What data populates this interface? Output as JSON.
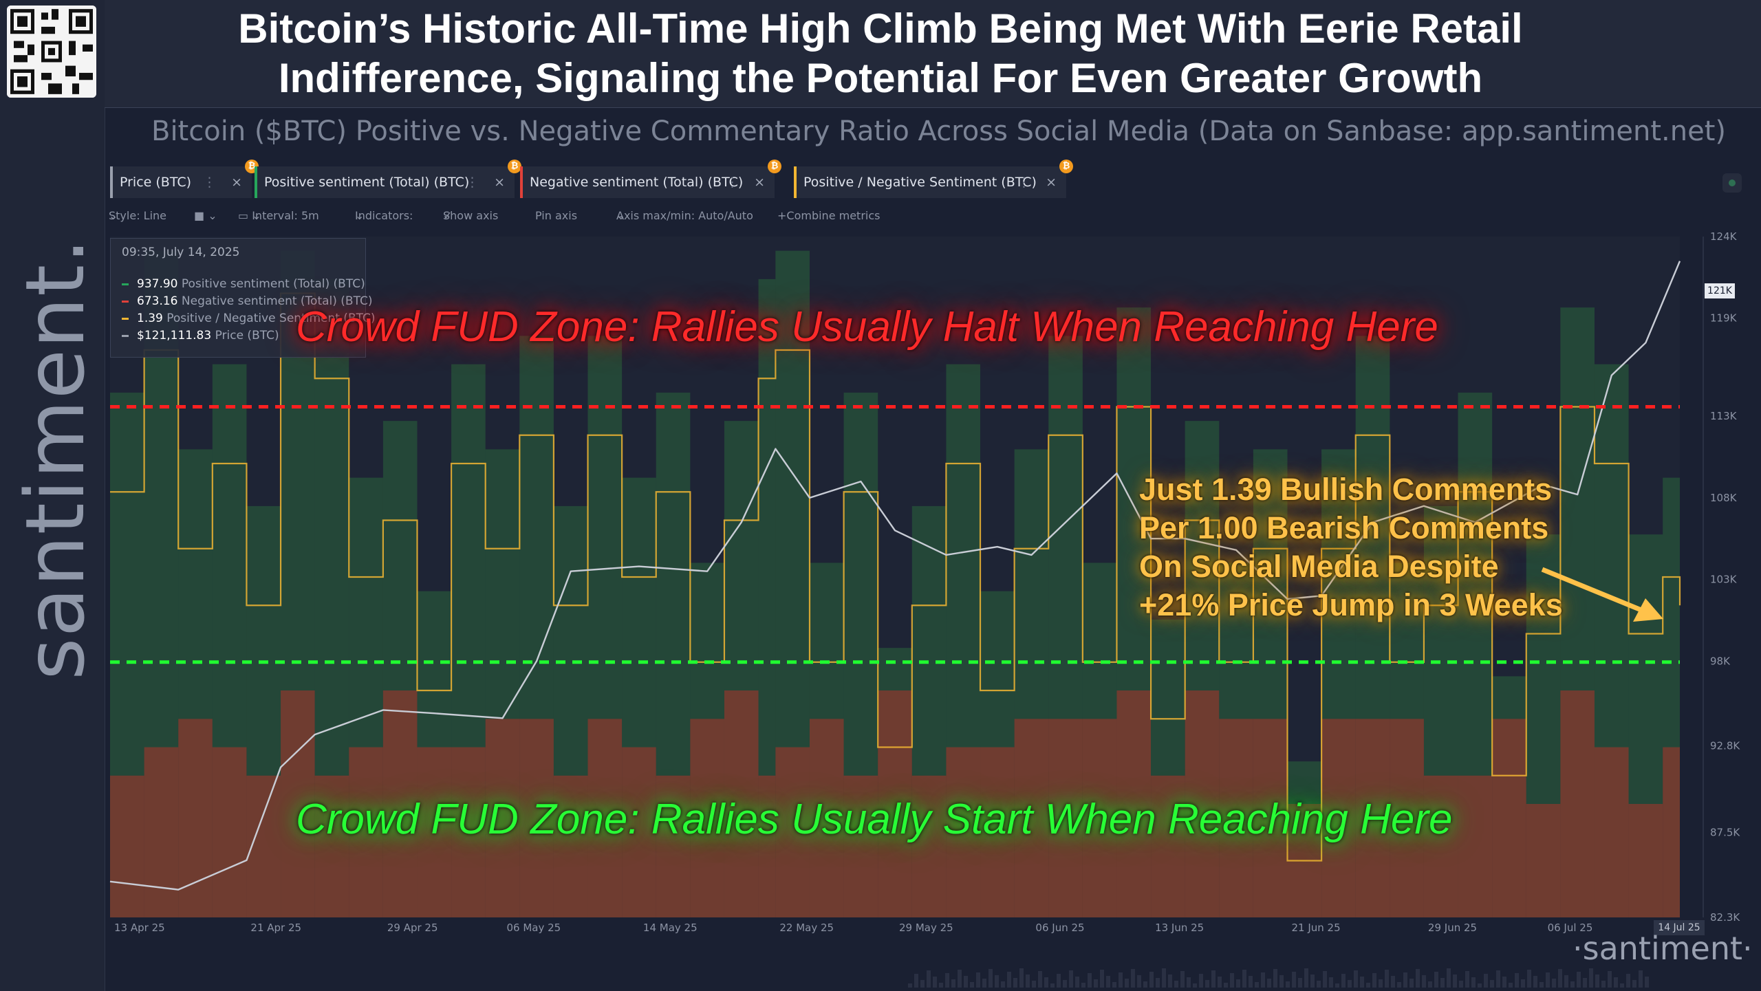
{
  "title_line1": "Bitcoin’s Historic All-Time High Climb Being Met With Eerie Retail",
  "title_line2": "Indifference, Signaling the Potential For Even Greater Growth",
  "subtitle": "Bitcoin ($BTC) Positive vs. Negative Commentary Ratio Across Social Media (Data on Sanbase: app.santiment.net)",
  "side_brand": "santiment.",
  "qr_icon": "qr-code-icon",
  "tabs": [
    {
      "label": "Price (BTC)",
      "color": "#9aa0ad"
    },
    {
      "label": "Positive sentiment (Total) (BTC)",
      "color": "#26a65b"
    },
    {
      "label": "Negative sentiment (Total) (BTC)",
      "color": "#e0413a"
    },
    {
      "label": "Positive / Negative Sentiment (BTC)",
      "color": "#f2b632"
    }
  ],
  "tab_coin_glyph": "₿",
  "toolbar": {
    "style": "Style: Line",
    "interval": "Interval: 5m",
    "indicators": "Indicators:",
    "show_axis": "Show axis",
    "pin_axis": "Pin axis",
    "axis_minmax": "Axis max/min: Auto/Auto",
    "combine": "Combine metrics"
  },
  "tooltip": {
    "timestamp": "09:35, July 14, 2025",
    "rows": [
      {
        "value": "937.90",
        "label": "Positive sentiment (Total) (BTC)",
        "color": "#26a65b"
      },
      {
        "value": "673.16",
        "label": "Negative sentiment (Total) (BTC)",
        "color": "#e0413a"
      },
      {
        "value": "1.39",
        "label": "Positive / Negative Sentiment (BTC)",
        "color": "#f2b632"
      },
      {
        "value": "$121,111.83",
        "label": "Price (BTC)",
        "color": "#9aa0ad"
      }
    ]
  },
  "annotations": {
    "red_zone": "Crowd FUD Zone: Rallies Usually Halt When Reaching Here",
    "green_zone": "Crowd FUD Zone: Rallies Usually Start When Reaching Here",
    "callout": [
      "Just 1.39 Bullish Comments",
      "Per 1.00 Bearish Comments",
      "On Social Media Despite",
      "+21% Price Jump in 3 Weeks"
    ]
  },
  "watermark": "·santiment·",
  "price_badge": "121K",
  "date_badge": "14 Jul 25",
  "colors": {
    "price": "#c9cdd6",
    "positive": "#2d7a3d",
    "negative": "#b3502c",
    "ratio": "#f2b632",
    "red_line": "#ff2020",
    "green_line": "#20ff30"
  },
  "chart_data": {
    "type": "line",
    "x_ticks": [
      "13 Apr 25",
      "21 Apr 25",
      "29 Apr 25",
      "06 May 25",
      "14 May 25",
      "22 May 25",
      "29 May 25",
      "06 Jun 25",
      "13 Jun 25",
      "21 Jun 25",
      "29 Jun 25",
      "06 Jul 25",
      "14 Jul 25"
    ],
    "y_ticks_price": [
      "124K",
      "121K",
      "119K",
      "113K",
      "108K",
      "103K",
      "98K",
      "92.8K",
      "87.5K",
      "82.3K"
    ],
    "y_price_values": [
      124000,
      119000,
      113000,
      108000,
      103000,
      98000,
      92800,
      87500,
      82300
    ],
    "price_ylim": [
      82300,
      124000
    ],
    "ratio_ylim": [
      0.6,
      3.0
    ],
    "reference_lines": {
      "red_ratio": 2.4,
      "green_ratio": 1.5
    },
    "series": [
      {
        "name": "Price (BTC)",
        "x": [
          "13 Apr 25",
          "17 Apr 25",
          "21 Apr 25",
          "23 Apr 25",
          "25 Apr 25",
          "29 Apr 25",
          "02 May 25",
          "06 May 25",
          "08 May 25",
          "10 May 25",
          "14 May 25",
          "18 May 25",
          "20 May 25",
          "22 May 25",
          "24 May 25",
          "27 May 25",
          "29 May 25",
          "01 Jun 25",
          "04 Jun 25",
          "06 Jun 25",
          "09 Jun 25",
          "11 Jun 25",
          "13 Jun 25",
          "15 Jun 25",
          "18 Jun 25",
          "21 Jun 25",
          "23 Jun 25",
          "26 Jun 25",
          "29 Jun 25",
          "02 Jul 25",
          "06 Jul 25",
          "08 Jul 25",
          "10 Jul 25",
          "12 Jul 25",
          "14 Jul 25"
        ],
        "values": [
          84500,
          84000,
          85800,
          91500,
          93500,
          95000,
          94800,
          94500,
          98000,
          103500,
          103800,
          103500,
          106500,
          111000,
          108000,
          109000,
          106000,
          104500,
          105000,
          104500,
          107500,
          109500,
          105500,
          105500,
          104800,
          101800,
          102000,
          106500,
          107500,
          106500,
          108800,
          108200,
          115500,
          117500,
          122500
        ]
      },
      {
        "name": "Positive / Negative Sentiment (BTC)",
        "x": [
          "13 Apr 25",
          "15 Apr 25",
          "17 Apr 25",
          "19 Apr 25",
          "21 Apr 25",
          "23 Apr 25",
          "25 Apr 25",
          "27 Apr 25",
          "29 Apr 25",
          "01 May 25",
          "03 May 25",
          "05 May 25",
          "07 May 25",
          "09 May 25",
          "11 May 25",
          "13 May 25",
          "15 May 25",
          "17 May 25",
          "19 May 25",
          "21 May 25",
          "22 May 25",
          "24 May 25",
          "26 May 25",
          "28 May 25",
          "30 May 25",
          "01 Jun 25",
          "03 Jun 25",
          "05 Jun 25",
          "07 Jun 25",
          "09 Jun 25",
          "11 Jun 25",
          "13 Jun 25",
          "15 Jun 25",
          "17 Jun 25",
          "19 Jun 25",
          "21 Jun 25",
          "23 Jun 25",
          "25 Jun 25",
          "27 Jun 25",
          "29 Jun 25",
          "01 Jul 25",
          "03 Jul 25",
          "05 Jul 25",
          "07 Jul 25",
          "09 Jul 25",
          "11 Jul 25",
          "13 Jul 25",
          "14 Jul 25"
        ],
        "values": [
          2.1,
          2.6,
          1.9,
          2.2,
          1.7,
          2.8,
          2.5,
          1.8,
          2.0,
          1.4,
          2.2,
          1.9,
          2.3,
          1.7,
          2.3,
          1.8,
          2.1,
          1.5,
          2.0,
          2.5,
          2.6,
          1.5,
          2.1,
          1.2,
          1.7,
          2.2,
          1.4,
          1.9,
          2.3,
          1.5,
          2.4,
          1.3,
          2.0,
          1.5,
          1.9,
          0.8,
          1.9,
          2.3,
          1.5,
          1.7,
          2.1,
          1.1,
          1.6,
          2.4,
          2.2,
          1.6,
          1.8,
          1.7
        ]
      }
    ]
  }
}
